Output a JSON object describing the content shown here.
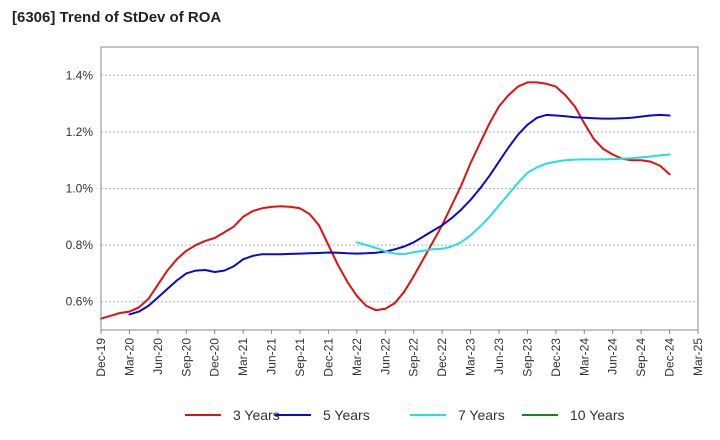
{
  "header": {
    "title": "[6306]  Trend of StDev of ROA"
  },
  "chart_data": {
    "type": "line",
    "title": "[6306]  Trend of StDev of ROA",
    "xlabel": "",
    "ylabel": "",
    "x_ticks": [
      "Dec-19",
      "Mar-20",
      "Jun-20",
      "Sep-20",
      "Dec-20",
      "Mar-21",
      "Jun-21",
      "Sep-21",
      "Dec-21",
      "Mar-22",
      "Jun-22",
      "Sep-22",
      "Dec-22",
      "Mar-23",
      "Jun-23",
      "Sep-23",
      "Dec-23",
      "Mar-24",
      "Jun-24",
      "Sep-24",
      "Dec-24",
      "Mar-25"
    ],
    "y_ticks": [
      "0.6%",
      "0.8%",
      "1.0%",
      "1.2%",
      "1.4%"
    ],
    "y_tick_values": [
      0.6,
      0.8,
      1.0,
      1.2,
      1.4
    ],
    "ylim": [
      0.5,
      1.5
    ],
    "grid": "horizontal dashed",
    "legend_position": "bottom",
    "series": [
      {
        "name": "3 Years",
        "color": "#dd1111",
        "points": [
          [
            "Dec-19",
            0.54
          ],
          [
            "Jan-20",
            0.55
          ],
          [
            "Feb-20",
            0.56
          ],
          [
            "Mar-20",
            0.565
          ],
          [
            "Apr-20",
            0.58
          ],
          [
            "May-20",
            0.61
          ],
          [
            "Jun-20",
            0.66
          ],
          [
            "Jul-20",
            0.71
          ],
          [
            "Aug-20",
            0.75
          ],
          [
            "Sep-20",
            0.78
          ],
          [
            "Oct-20",
            0.8
          ],
          [
            "Nov-20",
            0.815
          ],
          [
            "Dec-20",
            0.825
          ],
          [
            "Jan-21",
            0.845
          ],
          [
            "Feb-21",
            0.865
          ],
          [
            "Mar-21",
            0.9
          ],
          [
            "Apr-21",
            0.92
          ],
          [
            "May-21",
            0.93
          ],
          [
            "Jun-21",
            0.935
          ],
          [
            "Jul-21",
            0.937
          ],
          [
            "Aug-21",
            0.935
          ],
          [
            "Sep-21",
            0.93
          ],
          [
            "Oct-21",
            0.91
          ],
          [
            "Nov-21",
            0.87
          ],
          [
            "Dec-21",
            0.8
          ],
          [
            "Jan-22",
            0.73
          ],
          [
            "Feb-22",
            0.67
          ],
          [
            "Mar-22",
            0.62
          ],
          [
            "Apr-22",
            0.585
          ],
          [
            "May-22",
            0.57
          ],
          [
            "Jun-22",
            0.575
          ],
          [
            "Jul-22",
            0.595
          ],
          [
            "Aug-22",
            0.635
          ],
          [
            "Sep-22",
            0.69
          ],
          [
            "Oct-22",
            0.75
          ],
          [
            "Nov-22",
            0.81
          ],
          [
            "Dec-22",
            0.87
          ],
          [
            "Jan-23",
            0.94
          ],
          [
            "Feb-23",
            1.01
          ],
          [
            "Mar-23",
            1.09
          ],
          [
            "Apr-23",
            1.16
          ],
          [
            "May-23",
            1.23
          ],
          [
            "Jun-23",
            1.29
          ],
          [
            "Jul-23",
            1.33
          ],
          [
            "Aug-23",
            1.36
          ],
          [
            "Sep-23",
            1.375
          ],
          [
            "Oct-23",
            1.375
          ],
          [
            "Nov-23",
            1.37
          ],
          [
            "Dec-23",
            1.36
          ],
          [
            "Jan-24",
            1.33
          ],
          [
            "Feb-24",
            1.29
          ],
          [
            "Mar-24",
            1.23
          ],
          [
            "Apr-24",
            1.175
          ],
          [
            "May-24",
            1.14
          ],
          [
            "Jun-24",
            1.12
          ],
          [
            "Jul-24",
            1.105
          ],
          [
            "Aug-24",
            1.1
          ],
          [
            "Sep-24",
            1.1
          ],
          [
            "Oct-24",
            1.095
          ],
          [
            "Nov-24",
            1.08
          ],
          [
            "Dec-24",
            1.05
          ]
        ]
      },
      {
        "name": "5 Years",
        "color": "#0a0acc",
        "points": [
          [
            "Mar-20",
            0.555
          ],
          [
            "Apr-20",
            0.565
          ],
          [
            "May-20",
            0.585
          ],
          [
            "Jun-20",
            0.615
          ],
          [
            "Jul-20",
            0.645
          ],
          [
            "Aug-20",
            0.675
          ],
          [
            "Sep-20",
            0.7
          ],
          [
            "Oct-20",
            0.71
          ],
          [
            "Nov-20",
            0.712
          ],
          [
            "Dec-20",
            0.705
          ],
          [
            "Jan-21",
            0.71
          ],
          [
            "Feb-21",
            0.725
          ],
          [
            "Mar-21",
            0.75
          ],
          [
            "Apr-21",
            0.762
          ],
          [
            "May-21",
            0.768
          ],
          [
            "Jun-21",
            0.768
          ],
          [
            "Jul-21",
            0.768
          ],
          [
            "Aug-21",
            0.769
          ],
          [
            "Sep-21",
            0.77
          ],
          [
            "Oct-21",
            0.771
          ],
          [
            "Nov-21",
            0.772
          ],
          [
            "Dec-21",
            0.774
          ],
          [
            "Jan-22",
            0.773
          ],
          [
            "Feb-22",
            0.771
          ],
          [
            "Mar-22",
            0.77
          ],
          [
            "Apr-22",
            0.771
          ],
          [
            "May-22",
            0.773
          ],
          [
            "Jun-22",
            0.777
          ],
          [
            "Jul-22",
            0.785
          ],
          [
            "Aug-22",
            0.795
          ],
          [
            "Sep-22",
            0.81
          ],
          [
            "Oct-22",
            0.83
          ],
          [
            "Nov-22",
            0.85
          ],
          [
            "Dec-22",
            0.87
          ],
          [
            "Jan-23",
            0.895
          ],
          [
            "Feb-23",
            0.925
          ],
          [
            "Mar-23",
            0.96
          ],
          [
            "Apr-23",
            1.0
          ],
          [
            "May-23",
            1.045
          ],
          [
            "Jun-23",
            1.095
          ],
          [
            "Jul-23",
            1.145
          ],
          [
            "Aug-23",
            1.19
          ],
          [
            "Sep-23",
            1.225
          ],
          [
            "Oct-23",
            1.25
          ],
          [
            "Nov-23",
            1.26
          ],
          [
            "Dec-23",
            1.258
          ],
          [
            "Jan-24",
            1.255
          ],
          [
            "Feb-24",
            1.252
          ],
          [
            "Mar-24",
            1.25
          ],
          [
            "Apr-24",
            1.248
          ],
          [
            "May-24",
            1.247
          ],
          [
            "Jun-24",
            1.247
          ],
          [
            "Jul-24",
            1.248
          ],
          [
            "Aug-24",
            1.25
          ],
          [
            "Sep-24",
            1.254
          ],
          [
            "Oct-24",
            1.258
          ],
          [
            "Nov-24",
            1.26
          ],
          [
            "Dec-24",
            1.258
          ]
        ]
      },
      {
        "name": "7 Years",
        "color": "#22e0e0",
        "points": [
          [
            "Mar-22",
            0.81
          ],
          [
            "Apr-22",
            0.8
          ],
          [
            "May-22",
            0.79
          ],
          [
            "Jun-22",
            0.778
          ],
          [
            "Jul-22",
            0.77
          ],
          [
            "Aug-22",
            0.768
          ],
          [
            "Sep-22",
            0.775
          ],
          [
            "Oct-22",
            0.78
          ],
          [
            "Nov-22",
            0.785
          ],
          [
            "Dec-22",
            0.787
          ],
          [
            "Jan-23",
            0.795
          ],
          [
            "Feb-23",
            0.81
          ],
          [
            "Mar-23",
            0.835
          ],
          [
            "Apr-23",
            0.865
          ],
          [
            "May-23",
            0.9
          ],
          [
            "Jun-23",
            0.94
          ],
          [
            "Jul-23",
            0.98
          ],
          [
            "Aug-23",
            1.02
          ],
          [
            "Sep-23",
            1.055
          ],
          [
            "Oct-23",
            1.075
          ],
          [
            "Nov-23",
            1.088
          ],
          [
            "Dec-23",
            1.095
          ],
          [
            "Jan-24",
            1.1
          ],
          [
            "Feb-24",
            1.102
          ],
          [
            "Mar-24",
            1.103
          ],
          [
            "Apr-24",
            1.103
          ],
          [
            "May-24",
            1.103
          ],
          [
            "Jun-24",
            1.104
          ],
          [
            "Jul-24",
            1.105
          ],
          [
            "Aug-24",
            1.107
          ],
          [
            "Sep-24",
            1.11
          ],
          [
            "Oct-24",
            1.113
          ],
          [
            "Nov-24",
            1.117
          ],
          [
            "Dec-24",
            1.12
          ]
        ]
      },
      {
        "name": "10 Years",
        "color": "#208020",
        "points": []
      }
    ]
  }
}
